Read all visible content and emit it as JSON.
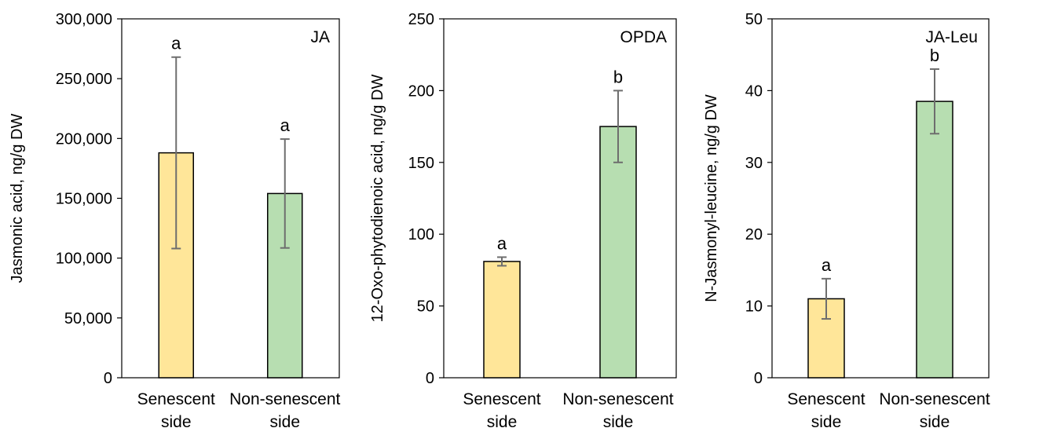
{
  "chart_data": [
    {
      "type": "bar",
      "annotation": "JA",
      "ylabel": "Jasmonic acid, ng/g DW",
      "categories": [
        [
          "Senescent",
          "side"
        ],
        [
          "Non-senescent",
          "side"
        ]
      ],
      "values": [
        188000,
        154000
      ],
      "error": [
        80000,
        45500
      ],
      "letters": [
        "a",
        "a"
      ],
      "ylim": [
        0,
        300000
      ],
      "yticks": [
        0,
        50000,
        100000,
        150000,
        200000,
        250000,
        300000
      ],
      "ytick_labels": [
        "0",
        "50,000",
        "100,000",
        "150,000",
        "200,000",
        "250,000",
        "300,000"
      ],
      "colors": [
        "#FFE699",
        "#B7DEB1"
      ],
      "grid": false
    },
    {
      "type": "bar",
      "annotation": "OPDA",
      "ylabel": "12-Oxo-phytodienoic acid, ng/g DW",
      "categories": [
        [
          "Senescent",
          "side"
        ],
        [
          "Non-senescent",
          "side"
        ]
      ],
      "values": [
        81,
        175
      ],
      "error": [
        3,
        25
      ],
      "letters": [
        "a",
        "b"
      ],
      "ylim": [
        0,
        250
      ],
      "yticks": [
        0,
        50,
        100,
        150,
        200,
        250
      ],
      "ytick_labels": [
        "0",
        "50",
        "100",
        "150",
        "200",
        "250"
      ],
      "colors": [
        "#FFE699",
        "#B7DEB1"
      ],
      "grid": false
    },
    {
      "type": "bar",
      "annotation": "JA-Leu",
      "ylabel": "N-Jasmonyl-leucine, ng/g DW",
      "categories": [
        [
          "Senescent",
          "side"
        ],
        [
          "Non-senescent",
          "side"
        ]
      ],
      "values": [
        11,
        38.5
      ],
      "error": [
        2.8,
        4.5
      ],
      "letters": [
        "a",
        "b"
      ],
      "ylim": [
        0,
        50
      ],
      "yticks": [
        0,
        10,
        20,
        30,
        40,
        50
      ],
      "ytick_labels": [
        "0",
        "10",
        "20",
        "30",
        "40",
        "50"
      ],
      "colors": [
        "#FFE699",
        "#B7DEB1"
      ],
      "grid": false
    }
  ]
}
